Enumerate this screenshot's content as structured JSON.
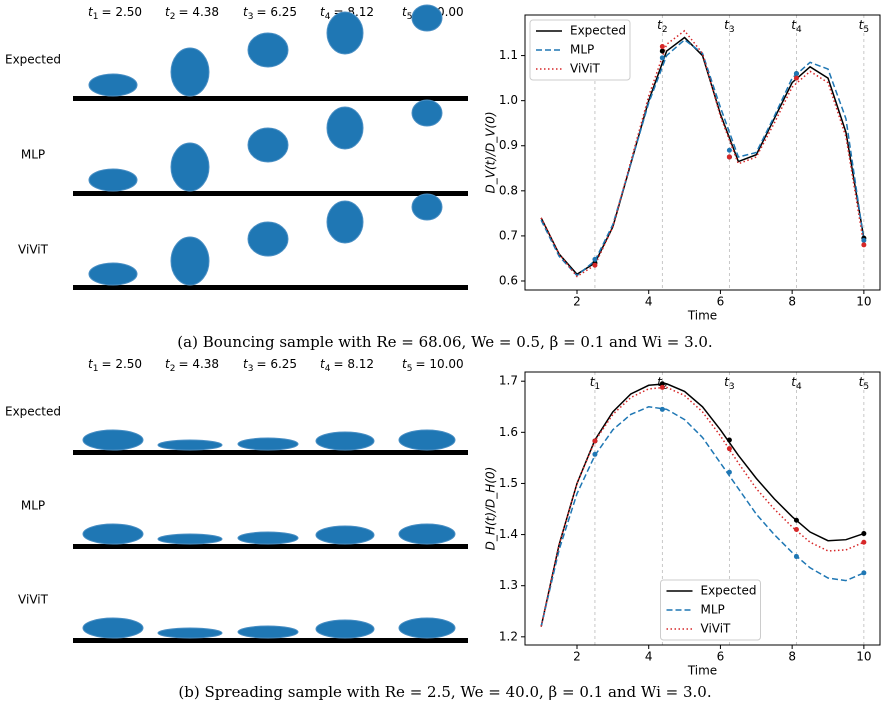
{
  "panels": [
    {
      "time_labels": [
        {
          "var": "t",
          "sub": "1",
          "eq": "= 2.50"
        },
        {
          "var": "t",
          "sub": "2",
          "eq": "= 4.38"
        },
        {
          "var": "t",
          "sub": "3",
          "eq": "= 6.25"
        },
        {
          "var": "t",
          "sub": "4",
          "eq": "= 8.12"
        },
        {
          "var": "t",
          "sub": "5",
          "eq": "= 10.00"
        }
      ],
      "row_labels": [
        "Expected",
        "MLP",
        "ViViT"
      ],
      "caption": "(a) Bouncing sample with Re = 68.06, We = 0.5, β = 0.1 and Wi = 3.0."
    },
    {
      "time_labels": [
        {
          "var": "t",
          "sub": "1",
          "eq": "= 2.50"
        },
        {
          "var": "t",
          "sub": "2",
          "eq": "= 4.38"
        },
        {
          "var": "t",
          "sub": "3",
          "eq": "= 6.25"
        },
        {
          "var": "t",
          "sub": "4",
          "eq": "= 8.12"
        },
        {
          "var": "t",
          "sub": "5",
          "eq": "= 10.00"
        }
      ],
      "row_labels": [
        "Expected",
        "MLP",
        "ViViT"
      ],
      "caption": "(b) Spreading sample with Re = 2.5, We = 40.0, β = 0.1 and Wi = 3.0."
    }
  ],
  "chart_data": [
    {
      "type": "line",
      "xlabel": "Time",
      "ylabel": "D_V(t)/D_V(0)",
      "x": [
        1,
        1.5,
        2,
        2.5,
        3,
        3.5,
        4,
        4.5,
        5,
        5.5,
        6,
        6.5,
        7,
        7.5,
        8,
        8.5,
        9,
        9.5,
        10
      ],
      "xlim": [
        0.55,
        10.45
      ],
      "xticks": [
        2,
        4,
        6,
        8,
        10
      ],
      "ylim": [
        0.58,
        1.19
      ],
      "yticks": [
        0.6,
        0.7,
        0.8,
        0.9,
        {
          "value": 1,
          "label": "1.0"
        },
        1.1
      ],
      "legend": "upper left",
      "markers": [
        {
          "x": 2.5,
          "var": "t",
          "sub": "1"
        },
        {
          "x": 4.38,
          "var": "t",
          "sub": "2"
        },
        {
          "x": 6.25,
          "var": "t",
          "sub": "3"
        },
        {
          "x": 8.12,
          "var": "t",
          "sub": "4"
        },
        {
          "x": 10,
          "var": "t",
          "sub": "5"
        }
      ],
      "series": [
        {
          "name": "Expected",
          "color": "#000000",
          "style": "solid",
          "values": [
            0.74,
            0.66,
            0.615,
            0.64,
            0.72,
            0.86,
            1.0,
            1.11,
            1.14,
            1.1,
            0.97,
            0.865,
            0.88,
            0.96,
            1.04,
            1.075,
            1.05,
            0.93,
            0.695
          ],
          "marker_values": [
            0.64,
            1.11,
            0.875,
            1.06,
            0.695
          ]
        },
        {
          "name": "MLP",
          "color": "#1f77b4",
          "style": "dashed",
          "values": [
            0.735,
            0.655,
            0.612,
            0.645,
            0.725,
            0.86,
            0.995,
            1.1,
            1.135,
            1.105,
            0.985,
            0.875,
            0.885,
            0.965,
            1.05,
            1.085,
            1.07,
            0.96,
            0.69
          ],
          "marker_values": [
            0.648,
            1.095,
            0.89,
            1.06,
            0.69
          ]
        },
        {
          "name": "ViViT",
          "color": "#d62728",
          "style": "dotted",
          "values": [
            0.74,
            0.66,
            0.61,
            0.635,
            0.72,
            0.865,
            1.01,
            1.125,
            1.155,
            1.105,
            0.965,
            0.86,
            0.875,
            0.95,
            1.03,
            1.065,
            1.04,
            0.92,
            0.68
          ],
          "marker_values": [
            0.635,
            1.12,
            0.875,
            1.05,
            0.68
          ]
        }
      ]
    },
    {
      "type": "line",
      "xlabel": "Time",
      "ylabel": "D_H(t)/D_H(0)",
      "x": [
        1,
        1.5,
        2,
        2.5,
        3,
        3.5,
        4,
        4.5,
        5,
        5.5,
        6,
        6.5,
        7,
        7.5,
        8,
        8.5,
        9,
        9.5,
        10
      ],
      "xlim": [
        0.55,
        10.45
      ],
      "xticks": [
        2,
        4,
        6,
        8,
        10
      ],
      "ylim": [
        1.184,
        1.718
      ],
      "yticks": [
        1.2,
        1.3,
        1.4,
        1.5,
        1.6,
        1.7
      ],
      "legend": "lower center",
      "markers": [
        {
          "x": 2.5,
          "var": "t",
          "sub": "1"
        },
        {
          "x": 4.38,
          "var": "t",
          "sub": "2"
        },
        {
          "x": 6.25,
          "var": "t",
          "sub": "3"
        },
        {
          "x": 8.12,
          "var": "t",
          "sub": "4"
        },
        {
          "x": 10,
          "var": "t",
          "sub": "5"
        }
      ],
      "series": [
        {
          "name": "Expected",
          "color": "#000000",
          "style": "solid",
          "values": [
            1.22,
            1.38,
            1.5,
            1.585,
            1.64,
            1.675,
            1.692,
            1.695,
            1.68,
            1.65,
            1.605,
            1.555,
            1.51,
            1.47,
            1.435,
            1.405,
            1.388,
            1.39,
            1.402
          ],
          "marker_values": [
            1.583,
            1.695,
            1.585,
            1.428,
            1.402
          ]
        },
        {
          "name": "MLP",
          "color": "#1f77b4",
          "style": "dashed",
          "values": [
            1.22,
            1.37,
            1.48,
            1.555,
            1.605,
            1.635,
            1.65,
            1.645,
            1.625,
            1.59,
            1.54,
            1.49,
            1.44,
            1.4,
            1.365,
            1.335,
            1.315,
            1.31,
            1.325
          ],
          "marker_values": [
            1.557,
            1.645,
            1.522,
            1.357,
            1.325
          ]
        },
        {
          "name": "ViViT",
          "color": "#d62728",
          "style": "dotted",
          "values": [
            1.22,
            1.38,
            1.5,
            1.583,
            1.635,
            1.668,
            1.685,
            1.688,
            1.672,
            1.64,
            1.593,
            1.54,
            1.49,
            1.45,
            1.415,
            1.385,
            1.368,
            1.37,
            1.385
          ],
          "marker_values": [
            1.583,
            1.688,
            1.568,
            1.41,
            1.385
          ]
        }
      ]
    }
  ]
}
